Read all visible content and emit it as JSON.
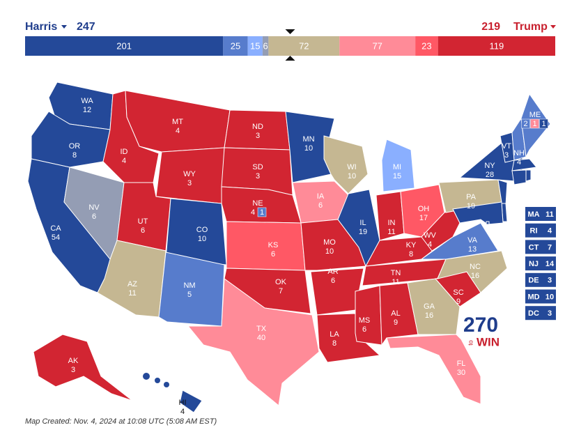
{
  "header": {
    "left_name": "Harris",
    "left_total": 247,
    "right_total": 219,
    "right_name": "Trump"
  },
  "bar": [
    {
      "value": 201,
      "color": "#244999"
    },
    {
      "value": 25,
      "color": "#577ccc"
    },
    {
      "value": 15,
      "color": "#8aafff"
    },
    {
      "value": 6,
      "color": "#949db4"
    },
    {
      "value": 72,
      "color": "#c5b792"
    },
    {
      "value": 77,
      "color": "#ff8b98"
    },
    {
      "value": 23,
      "color": "#ff5865"
    },
    {
      "value": 119,
      "color": "#d22532"
    }
  ],
  "states": [
    {
      "abbr": "WA",
      "votes": 12,
      "rating": 0
    },
    {
      "abbr": "OR",
      "votes": 8,
      "rating": 0
    },
    {
      "abbr": "CA",
      "votes": 54,
      "rating": 0
    },
    {
      "abbr": "NV",
      "votes": 6,
      "rating": 3
    },
    {
      "abbr": "ID",
      "votes": 4,
      "rating": 7
    },
    {
      "abbr": "MT",
      "votes": 4,
      "rating": 7
    },
    {
      "abbr": "WY",
      "votes": 3,
      "rating": 7
    },
    {
      "abbr": "UT",
      "votes": 6,
      "rating": 7
    },
    {
      "abbr": "AZ",
      "votes": 11,
      "rating": 4
    },
    {
      "abbr": "CO",
      "votes": 10,
      "rating": 0
    },
    {
      "abbr": "NM",
      "votes": 5,
      "rating": 1
    },
    {
      "abbr": "ND",
      "votes": 3,
      "rating": 7
    },
    {
      "abbr": "SD",
      "votes": 3,
      "rating": 7
    },
    {
      "abbr": "NE",
      "votes": 4,
      "rating": 7,
      "districts": [
        {
          "votes": 1,
          "rating": 1
        }
      ]
    },
    {
      "abbr": "KS",
      "votes": 6,
      "rating": 6
    },
    {
      "abbr": "OK",
      "votes": 7,
      "rating": 7
    },
    {
      "abbr": "TX",
      "votes": 40,
      "rating": 5
    },
    {
      "abbr": "MN",
      "votes": 10,
      "rating": 0
    },
    {
      "abbr": "IA",
      "votes": 6,
      "rating": 5
    },
    {
      "abbr": "MO",
      "votes": 10,
      "rating": 7
    },
    {
      "abbr": "AR",
      "votes": 6,
      "rating": 7
    },
    {
      "abbr": "LA",
      "votes": 8,
      "rating": 7
    },
    {
      "abbr": "WI",
      "votes": 10,
      "rating": 4
    },
    {
      "abbr": "IL",
      "votes": 19,
      "rating": 0
    },
    {
      "abbr": "MI",
      "votes": 15,
      "rating": 2
    },
    {
      "abbr": "IN",
      "votes": 11,
      "rating": 7
    },
    {
      "abbr": "OH",
      "votes": 17,
      "rating": 6
    },
    {
      "abbr": "KY",
      "votes": 8,
      "rating": 7
    },
    {
      "abbr": "TN",
      "votes": 11,
      "rating": 7
    },
    {
      "abbr": "MS",
      "votes": 6,
      "rating": 7
    },
    {
      "abbr": "AL",
      "votes": 9,
      "rating": 7
    },
    {
      "abbr": "GA",
      "votes": 16,
      "rating": 4
    },
    {
      "abbr": "FL",
      "votes": 30,
      "rating": 5
    },
    {
      "abbr": "SC",
      "votes": 9,
      "rating": 7
    },
    {
      "abbr": "NC",
      "votes": 16,
      "rating": 4
    },
    {
      "abbr": "VA",
      "votes": 13,
      "rating": 1
    },
    {
      "abbr": "WV",
      "votes": 4,
      "rating": 7
    },
    {
      "abbr": "PA",
      "votes": 19,
      "rating": 4
    },
    {
      "abbr": "NY",
      "votes": 28,
      "rating": 0
    },
    {
      "abbr": "VT",
      "votes": 3,
      "rating": 0
    },
    {
      "abbr": "NH",
      "votes": 4,
      "rating": 1
    },
    {
      "abbr": "ME",
      "votes": 2,
      "rating": 1,
      "districts": [
        {
          "votes": 1,
          "rating": 5
        },
        {
          "votes": 1,
          "rating": 0
        }
      ]
    },
    {
      "abbr": "AK",
      "votes": 3,
      "rating": 7
    },
    {
      "abbr": "HI",
      "votes": 4,
      "rating": 0
    },
    {
      "abbr": "MA",
      "votes": 11,
      "rating": 0
    },
    {
      "abbr": "RI",
      "votes": 4,
      "rating": 0
    },
    {
      "abbr": "CT",
      "votes": 7,
      "rating": 0
    },
    {
      "abbr": "NJ",
      "votes": 14,
      "rating": 0
    },
    {
      "abbr": "DE",
      "votes": 3,
      "rating": 0
    },
    {
      "abbr": "MD",
      "votes": 10,
      "rating": 0
    },
    {
      "abbr": "DC",
      "votes": 3,
      "rating": 0
    }
  ],
  "logo": {
    "number": "270",
    "small": "to",
    "word": "WIN"
  },
  "footer": "Map Created: Nov. 4, 2024 at 10:08 UTC (5:08 AM EST)"
}
